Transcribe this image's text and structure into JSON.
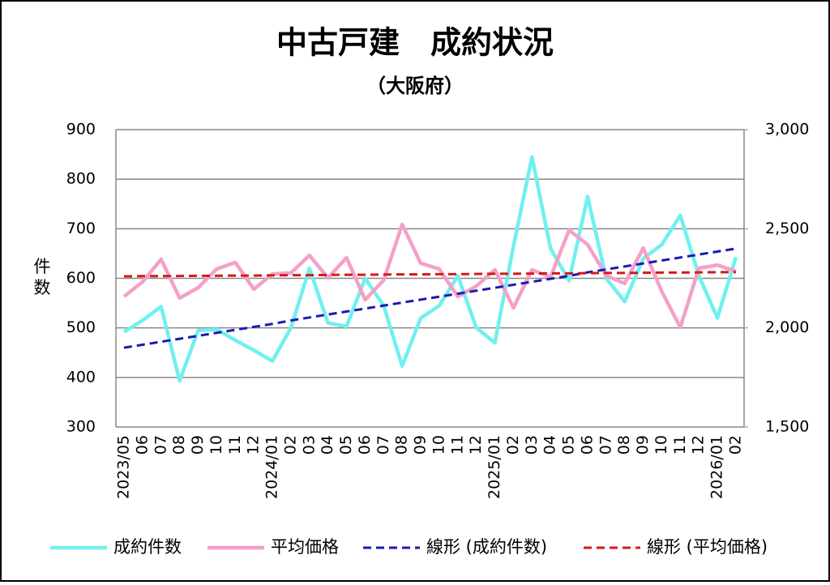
{
  "chart_data": {
    "type": "line",
    "title": "中古戸建　成約状況",
    "subtitle": "（大阪府）",
    "y_label": "件数",
    "categories": [
      "2023/05",
      "06",
      "07",
      "08",
      "09",
      "10",
      "11",
      "12",
      "2024/01",
      "02",
      "03",
      "04",
      "05",
      "06",
      "07",
      "08",
      "09",
      "10",
      "11",
      "12",
      "2025/01",
      "02",
      "03",
      "04",
      "05",
      "06",
      "07",
      "08",
      "09",
      "10",
      "11",
      "12",
      "2026/01",
      "02"
    ],
    "ylim": [
      300,
      900
    ],
    "yticks": [
      300,
      400,
      500,
      600,
      700,
      800,
      900
    ],
    "y2lim": [
      1500,
      3000
    ],
    "y2ticks": [
      {
        "value": 1500,
        "label": "1,500"
      },
      {
        "value": 2000,
        "label": "2,000"
      },
      {
        "value": 2500,
        "label": "2,500"
      },
      {
        "value": 3000,
        "label": "3,000"
      }
    ],
    "grid": true,
    "legend": "bottom",
    "series": [
      {
        "name": "成約件数",
        "color": "#70f0f0",
        "dashed": false,
        "values": [
          492,
          515,
          543,
          393,
          495,
          497,
          475,
          455,
          433,
          500,
          620,
          510,
          503,
          600,
          545,
          423,
          520,
          545,
          605,
          500,
          470,
          665,
          845,
          660,
          595,
          765,
          600,
          553,
          640,
          668,
          727,
          605,
          520,
          643
        ]
      },
      {
        "name": "平均価格",
        "color": "#f4a0c8",
        "dashed": false,
        "axis": "y2",
        "values": [
          2158,
          2232,
          2346,
          2150,
          2203,
          2297,
          2330,
          2195,
          2272,
          2277,
          2366,
          2252,
          2354,
          2142,
          2240,
          2522,
          2326,
          2297,
          2158,
          2211,
          2293,
          2101,
          2293,
          2256,
          2493,
          2420,
          2264,
          2224,
          2403,
          2183,
          2003,
          2301,
          2317,
          2285
        ]
      },
      {
        "name": "線形 (成約件数)",
        "color": "#1a1ab4",
        "dashed": true,
        "values": [
          460,
          466,
          472,
          478,
          484,
          490,
          496,
          502,
          508,
          515,
          521,
          527,
          533,
          539,
          545,
          551,
          557,
          563,
          569,
          575,
          581,
          587,
          593,
          599,
          605,
          612,
          618,
          624,
          630,
          636,
          642,
          648,
          654,
          660
        ]
      },
      {
        "name": "線形 (平均価格)",
        "color": "#d81818",
        "dashed": true,
        "axis": "y2",
        "values": [
          2260,
          2261,
          2261,
          2262,
          2263,
          2263,
          2264,
          2264,
          2265,
          2266,
          2266,
          2267,
          2268,
          2268,
          2269,
          2270,
          2270,
          2271,
          2271,
          2272,
          2273,
          2273,
          2274,
          2275,
          2275,
          2276,
          2277,
          2277,
          2278,
          2279,
          2279,
          2280,
          2281,
          2281
        ]
      }
    ]
  }
}
